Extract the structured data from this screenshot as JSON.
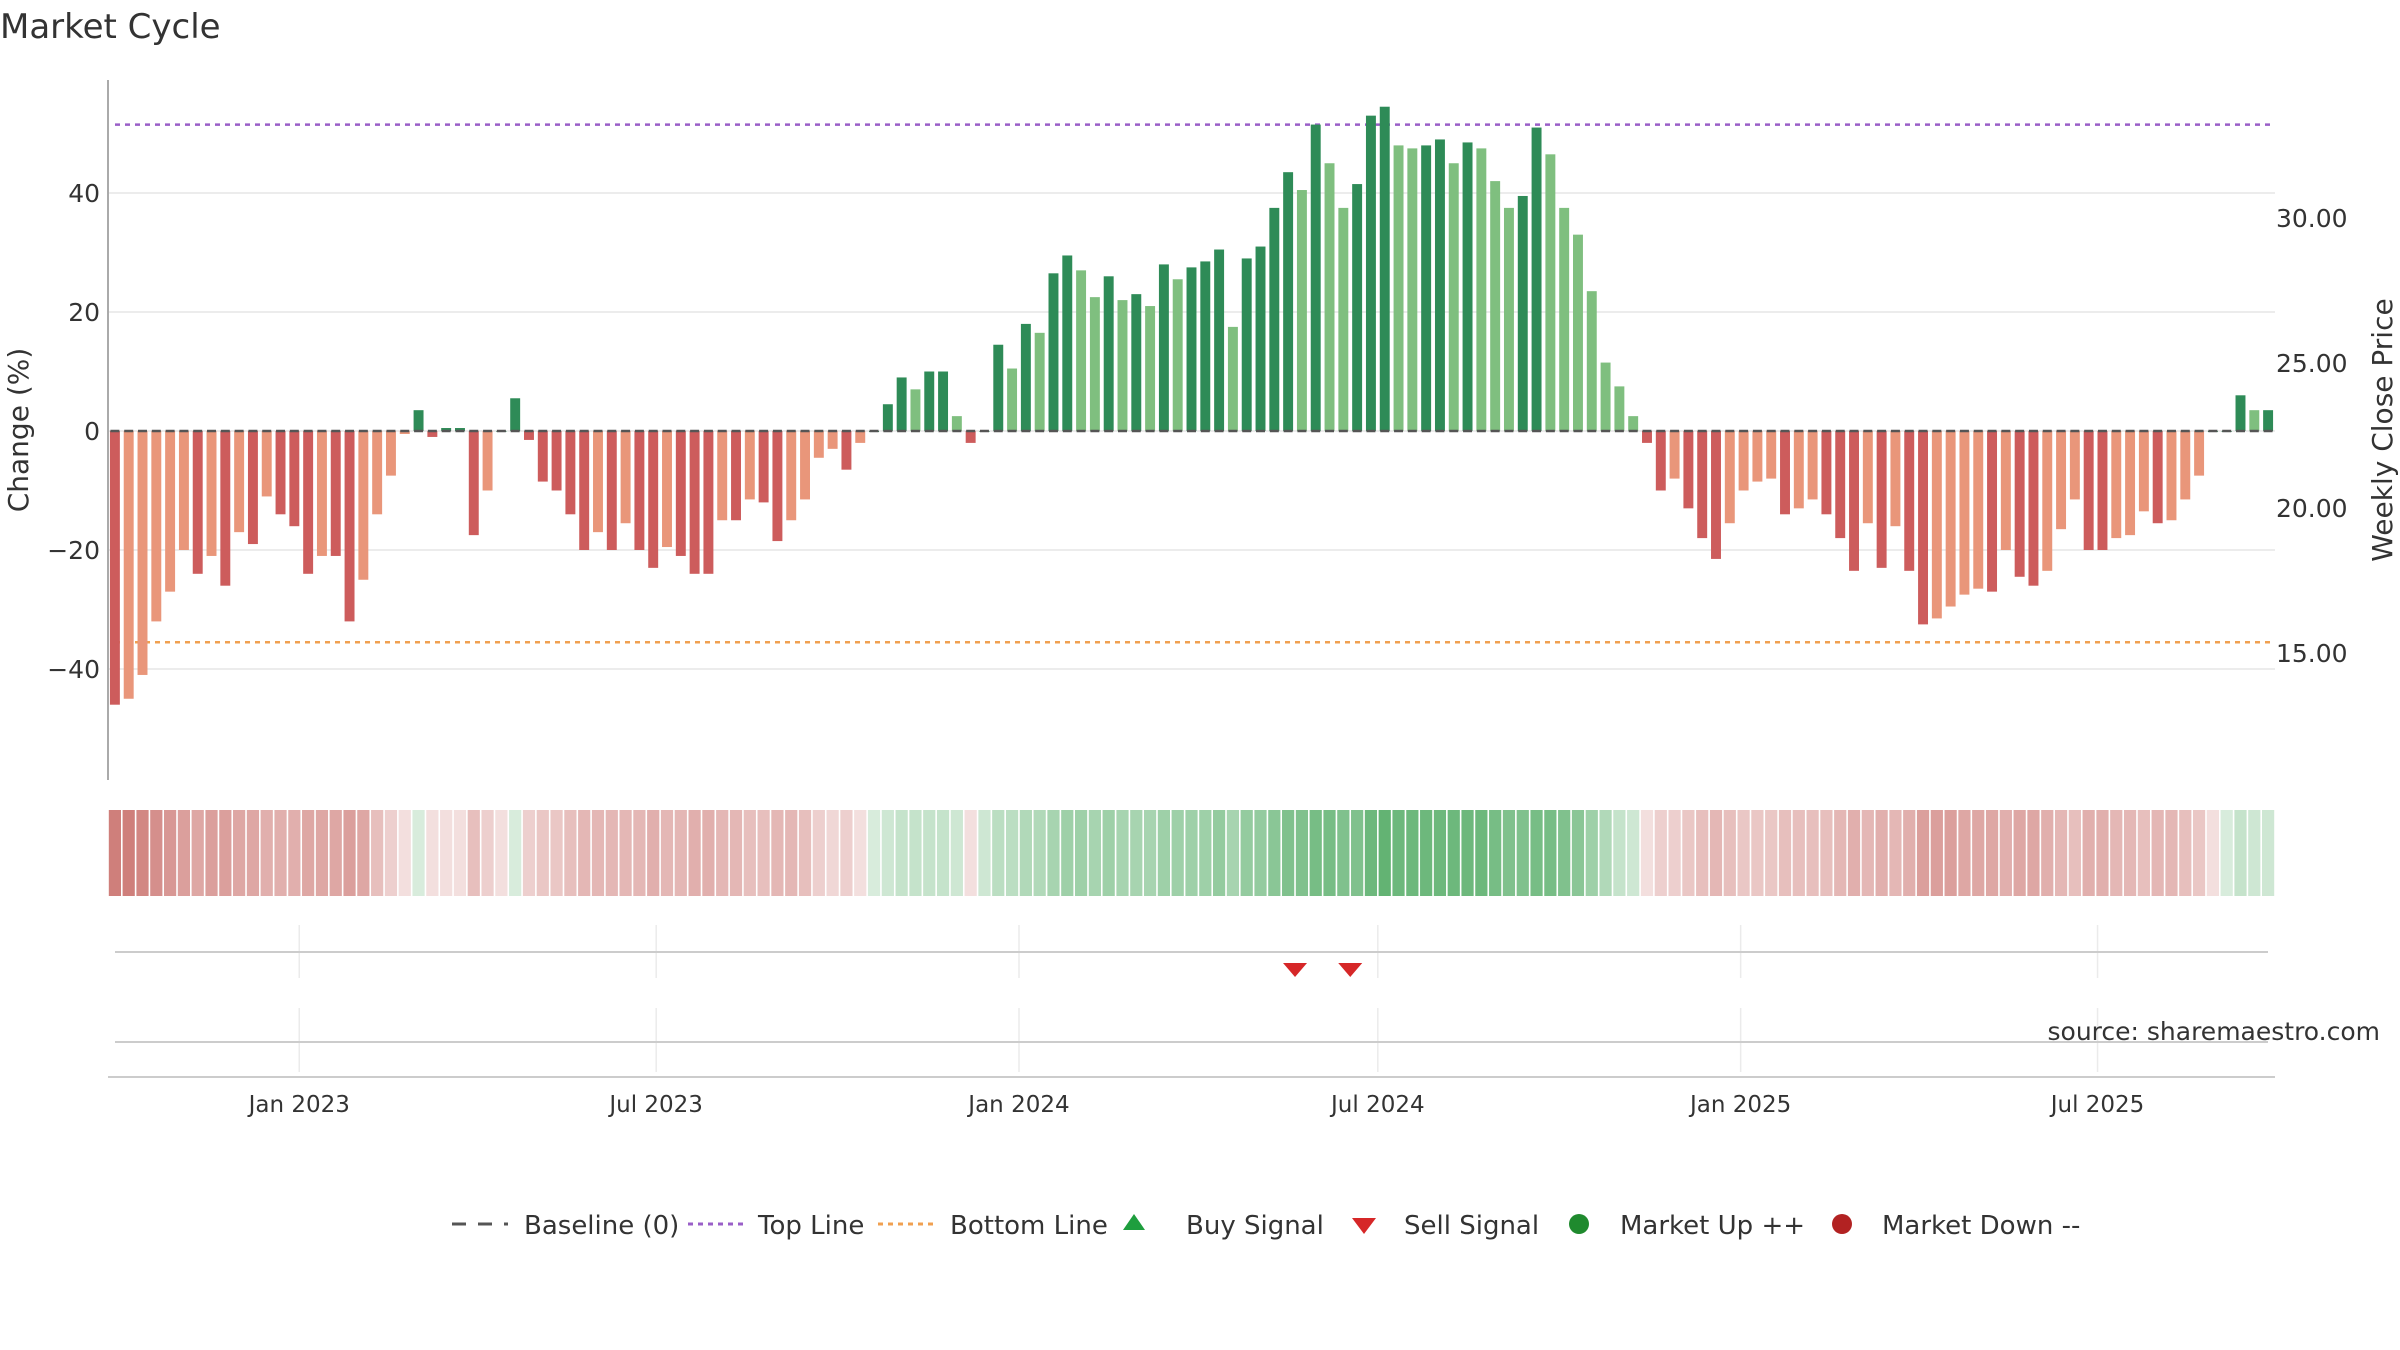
{
  "title": "Market Cycle",
  "source": "source: sharemaestro.com",
  "colors": {
    "top_line": "#9a5fc8",
    "bottom_line": "#f0a050",
    "baseline": "#555555",
    "up_dark": "#2e8b57",
    "up_light": "#7fbf7f",
    "down_dark": "#cd5c5c",
    "down_light": "#e9967a",
    "buy_signal": "#1e9e3e",
    "sell_signal": "#d62728",
    "market_up": "#1f8a2e",
    "market_down": "#b22222"
  },
  "chart_data": {
    "type": "bar",
    "y_left_label": "Change (%)",
    "y_right_label": "Weekly Close Price",
    "y_left_ticks": [
      40,
      20,
      0,
      -20,
      -40
    ],
    "y_right_ticks": [
      "30.00",
      "25.00",
      "20.00",
      "15.00"
    ],
    "ylim": [
      -59,
      59
    ],
    "x_start": "2022-09-26",
    "x_end": "2025-09-29",
    "x_ticks": [
      "Jan 2023",
      "Jul 2023",
      "Jan 2024",
      "Jul 2024",
      "Jan 2025",
      "Jul 2025"
    ],
    "x_tick_dates": [
      "2023-01-01",
      "2023-07-01",
      "2024-01-01",
      "2024-07-01",
      "2025-01-01",
      "2025-07-01"
    ],
    "top_line": 51.5,
    "bottom_line": -35.5,
    "values": [
      -46,
      -45,
      -41,
      -32,
      -27,
      -20,
      -24,
      -21,
      -26,
      -17,
      -19,
      -11,
      -14,
      -16,
      -24,
      -21,
      -21,
      -32,
      -25,
      -14,
      -7.5,
      -0.5,
      3.5,
      -1,
      0.5,
      0.5,
      -17.5,
      -10,
      0,
      5.5,
      -1.5,
      -8.5,
      -10,
      -14,
      -20,
      -17,
      -20,
      -15.5,
      -20,
      -23,
      -19.5,
      -21,
      -24,
      -24,
      -15,
      -15,
      -11.5,
      -12,
      -18.5,
      -15,
      -11.5,
      -4.5,
      -3,
      -6.5,
      -2,
      0,
      4.5,
      9,
      7,
      10,
      10,
      2.5,
      -2,
      0,
      14.5,
      10.5,
      18,
      16.5,
      26.5,
      29.5,
      27,
      22.5,
      26,
      22,
      23,
      21,
      28,
      25.5,
      27.5,
      28.5,
      30.5,
      17.5,
      29,
      31,
      37.5,
      43.5,
      40.5,
      51.5,
      45,
      37.5,
      41.5,
      53,
      54.5,
      48,
      47.5,
      48,
      49,
      45,
      48.5,
      47.5,
      42,
      37.5,
      39.5,
      51,
      46.5,
      37.5,
      33,
      23.5,
      11.5,
      7.5,
      2.5,
      -2,
      -10,
      -8,
      -13,
      -18,
      -21.5,
      -15.5,
      -10,
      -8.5,
      -8,
      -14,
      -13,
      -11.5,
      -14,
      -18,
      -23.5,
      -15.5,
      -23,
      -16,
      -23.5,
      -32.5,
      -31.5,
      -29.5,
      -27.5,
      -26.5,
      -27,
      -20,
      -24.5,
      -26,
      -23.5,
      -16.5,
      -11.5,
      -20,
      -20,
      -18,
      -17.5,
      -13.5,
      -15.5,
      -15,
      -11.5,
      -7.5,
      0,
      0,
      6,
      3.5,
      3.5
    ],
    "strength_band": [
      -0.8,
      -0.8,
      -0.75,
      -0.7,
      -0.65,
      -0.6,
      -0.55,
      -0.6,
      -0.6,
      -0.55,
      -0.55,
      -0.5,
      -0.5,
      -0.5,
      -0.55,
      -0.55,
      -0.55,
      -0.6,
      -0.55,
      -0.4,
      -0.3,
      -0.2,
      0.2,
      -0.2,
      -0.2,
      -0.2,
      -0.4,
      -0.3,
      -0.2,
      0.2,
      -0.3,
      -0.35,
      -0.35,
      -0.4,
      -0.45,
      -0.45,
      -0.45,
      -0.45,
      -0.45,
      -0.5,
      -0.45,
      -0.45,
      -0.5,
      -0.5,
      -0.45,
      -0.45,
      -0.4,
      -0.4,
      -0.45,
      -0.45,
      -0.4,
      -0.3,
      -0.25,
      -0.3,
      -0.2,
      0.2,
      0.25,
      0.3,
      0.3,
      0.3,
      0.3,
      0.25,
      -0.2,
      0.25,
      0.35,
      0.35,
      0.4,
      0.4,
      0.45,
      0.5,
      0.5,
      0.45,
      0.5,
      0.45,
      0.45,
      0.45,
      0.5,
      0.5,
      0.5,
      0.5,
      0.55,
      0.45,
      0.55,
      0.55,
      0.6,
      0.65,
      0.65,
      0.7,
      0.7,
      0.65,
      0.65,
      0.75,
      0.8,
      0.75,
      0.75,
      0.75,
      0.75,
      0.75,
      0.75,
      0.75,
      0.7,
      0.65,
      0.65,
      0.7,
      0.7,
      0.65,
      0.6,
      0.5,
      0.4,
      0.3,
      0.25,
      -0.2,
      -0.3,
      -0.3,
      -0.35,
      -0.4,
      -0.45,
      -0.4,
      -0.35,
      -0.35,
      -0.35,
      -0.4,
      -0.4,
      -0.4,
      -0.4,
      -0.45,
      -0.5,
      -0.45,
      -0.5,
      -0.45,
      -0.5,
      -0.6,
      -0.6,
      -0.6,
      -0.55,
      -0.55,
      -0.55,
      -0.5,
      -0.55,
      -0.55,
      -0.5,
      -0.45,
      -0.4,
      -0.5,
      -0.5,
      -0.45,
      -0.45,
      -0.4,
      -0.45,
      -0.45,
      -0.4,
      -0.35,
      -0.2,
      0.2,
      0.3,
      0.25,
      0.25
    ],
    "sell_signals": [
      "2024-05-20",
      "2024-06-17"
    ],
    "buy_signals": [],
    "legend": [
      "Baseline (0)",
      "Top Line",
      "Bottom Line",
      "Buy Signal",
      "Sell Signal",
      "Market Up ++",
      "Market Down --"
    ],
    "legend_position": "bottom",
    "grid": true
  }
}
